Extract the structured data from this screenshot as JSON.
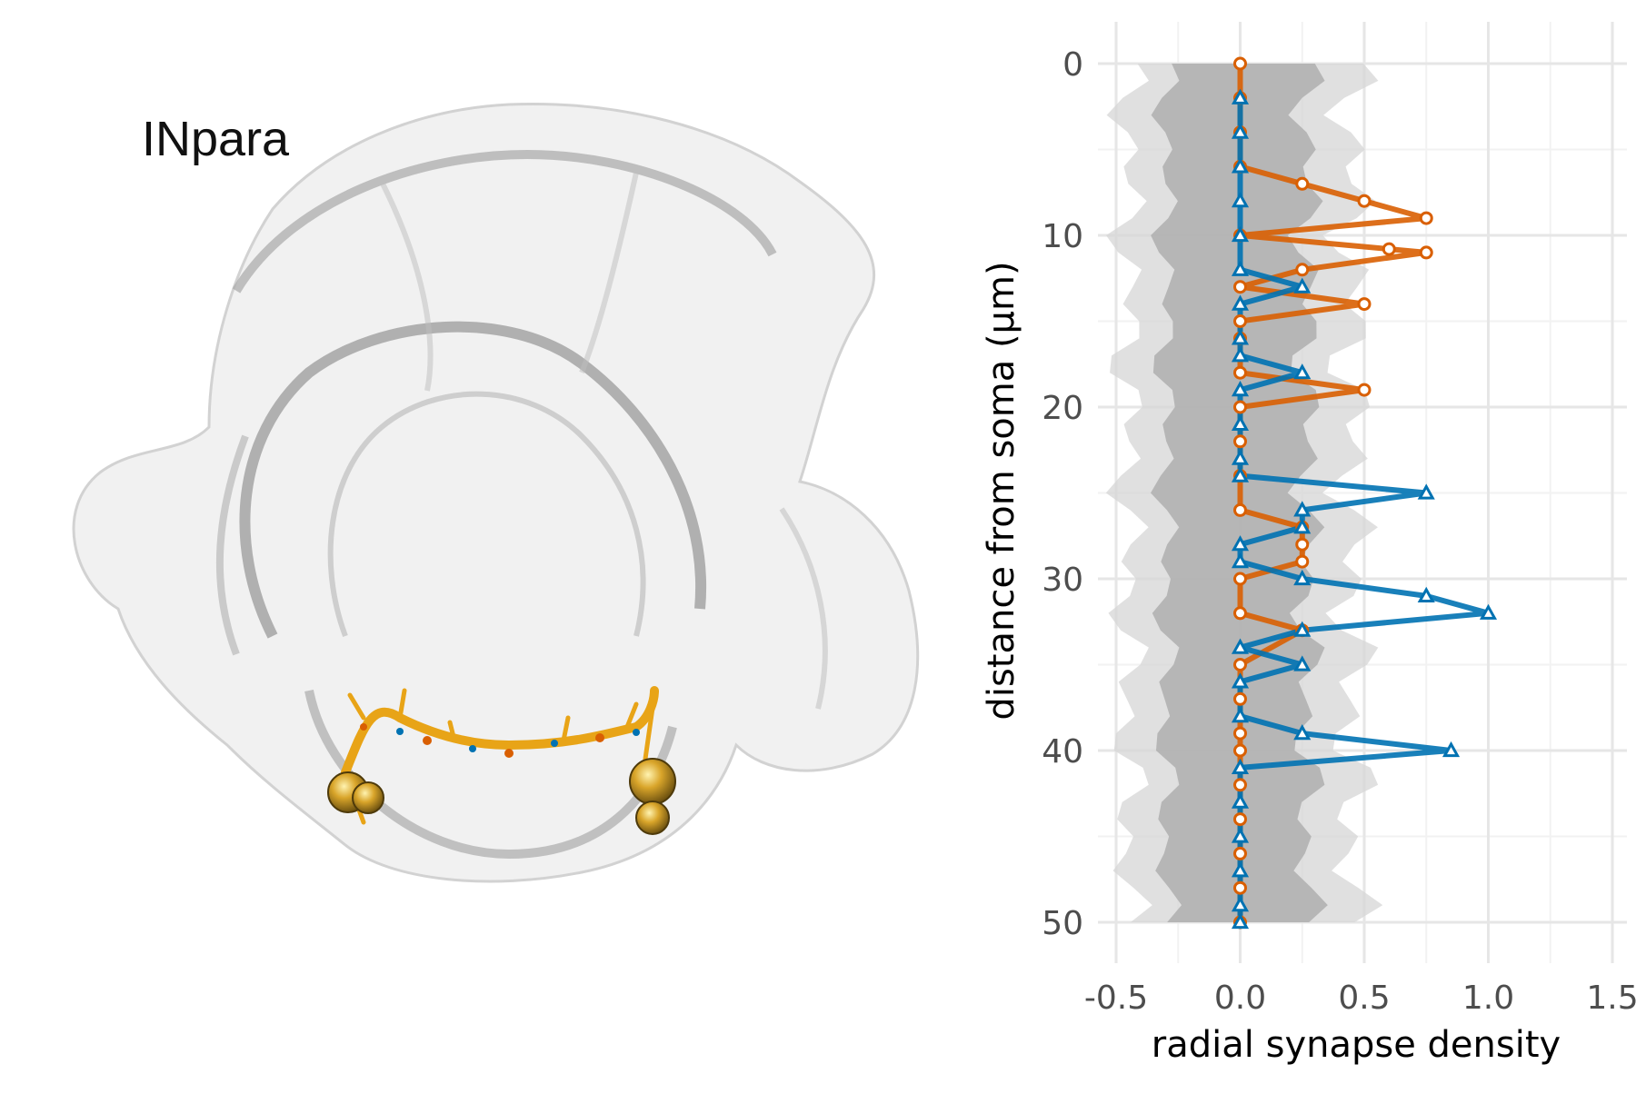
{
  "panel_label": "INpara",
  "colors": {
    "orange": "#d95f02",
    "blue": "#0072b2",
    "neuron": "#e8a417",
    "soma": "#c8961e",
    "ribbon_outer": "#d6d6d6",
    "ribbon_inner": "#a8a8a8"
  },
  "chart_data": {
    "type": "line",
    "xlabel": "radial synapse density",
    "ylabel": "distance from soma (µm)",
    "xlim": [
      -0.5,
      1.5
    ],
    "ylim": [
      0,
      50
    ],
    "y_reversed": true,
    "xticks": [
      -0.5,
      0.0,
      0.5,
      1.0,
      1.5
    ],
    "xtick_labels": [
      "-0.5",
      "0.0",
      "0.5",
      "1.0",
      "1.5"
    ],
    "yticks": [
      0,
      10,
      20,
      30,
      40,
      50
    ],
    "ytick_labels": [
      "0",
      "10",
      "20",
      "30",
      "40",
      "50"
    ],
    "grid": true,
    "series": [
      {
        "marker": "circle",
        "color": "#d95f02",
        "points": [
          [
            0,
            0
          ],
          [
            0,
            2
          ],
          [
            0,
            4
          ],
          [
            0,
            6
          ],
          [
            0.25,
            7
          ],
          [
            0.5,
            8
          ],
          [
            0.75,
            9
          ],
          [
            0,
            10
          ],
          [
            0.6,
            10.8
          ],
          [
            0.75,
            11
          ],
          [
            0.25,
            12
          ],
          [
            0,
            13
          ],
          [
            0.5,
            14
          ],
          [
            0,
            15
          ],
          [
            0,
            16
          ],
          [
            0,
            18
          ],
          [
            0.5,
            19
          ],
          [
            0,
            20
          ],
          [
            0,
            22
          ],
          [
            0,
            24
          ],
          [
            0,
            26
          ],
          [
            0.25,
            27
          ],
          [
            0.25,
            28
          ],
          [
            0.25,
            29
          ],
          [
            0,
            30
          ],
          [
            0,
            32
          ],
          [
            0.25,
            33
          ],
          [
            0,
            35
          ],
          [
            0,
            37
          ],
          [
            0,
            39
          ],
          [
            0,
            40
          ],
          [
            0,
            42
          ],
          [
            0,
            44
          ],
          [
            0,
            46
          ],
          [
            0,
            48
          ],
          [
            0,
            50
          ]
        ]
      },
      {
        "marker": "triangle",
        "color": "#0072b2",
        "points": [
          [
            0,
            2
          ],
          [
            0,
            4
          ],
          [
            0,
            6
          ],
          [
            0,
            8
          ],
          [
            0,
            10
          ],
          [
            0,
            12
          ],
          [
            0.25,
            13
          ],
          [
            0,
            14
          ],
          [
            0,
            16
          ],
          [
            0,
            17
          ],
          [
            0.25,
            18
          ],
          [
            0,
            19
          ],
          [
            0,
            21
          ],
          [
            0,
            23
          ],
          [
            0,
            24
          ],
          [
            0.75,
            25
          ],
          [
            0.25,
            26
          ],
          [
            0.25,
            27
          ],
          [
            0,
            28
          ],
          [
            0,
            29
          ],
          [
            0.25,
            30
          ],
          [
            0.75,
            31
          ],
          [
            1.0,
            32
          ],
          [
            0.25,
            33
          ],
          [
            0,
            34
          ],
          [
            0.25,
            35
          ],
          [
            0,
            36
          ],
          [
            0,
            38
          ],
          [
            0.25,
            39
          ],
          [
            0.85,
            40
          ],
          [
            0,
            41
          ],
          [
            0,
            43
          ],
          [
            0,
            45
          ],
          [
            0,
            47
          ],
          [
            0,
            49
          ],
          [
            0,
            50
          ]
        ]
      }
    ]
  }
}
